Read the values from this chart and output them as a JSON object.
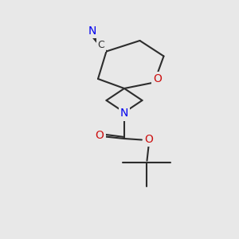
{
  "background_color": "#e8e8e8",
  "bond_color": "#2d2d2d",
  "bond_width": 1.5,
  "atom_colors": {
    "N": "#0000ee",
    "O": "#cc1111",
    "C_label": "#2d2d2d"
  },
  "figsize": [
    3.0,
    3.0
  ],
  "dpi": 100
}
